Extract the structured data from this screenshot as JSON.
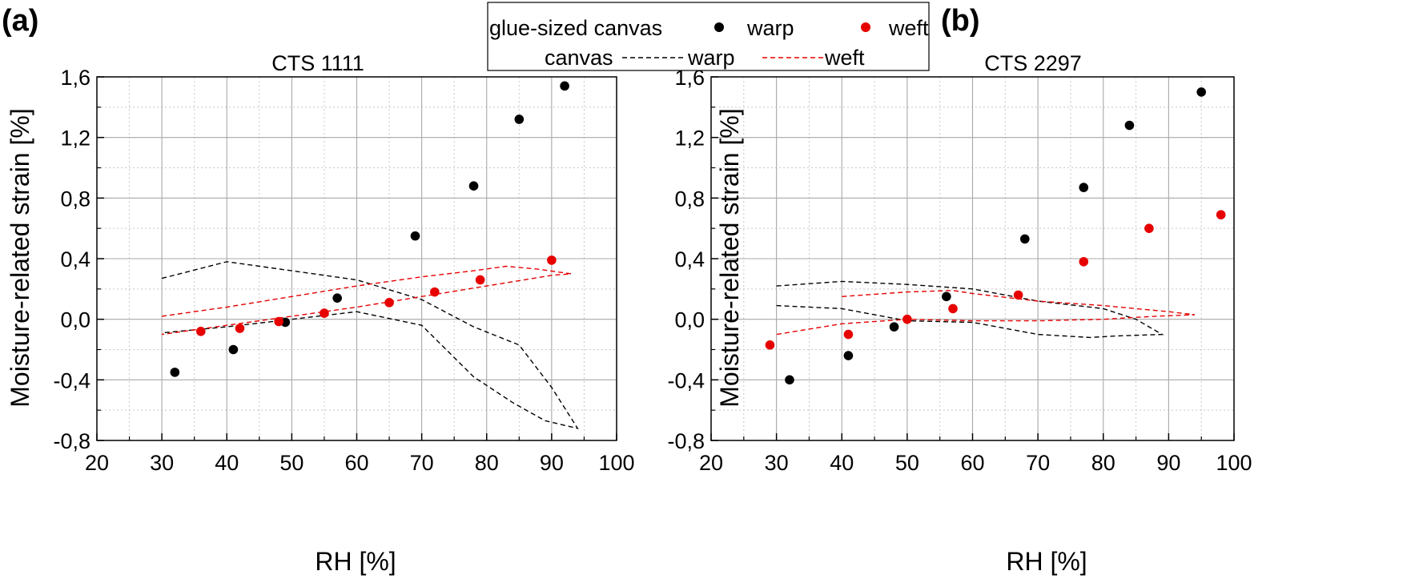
{
  "legend": {
    "glue_sized_label": "glue-sized canvas",
    "canvas_label": "canvas",
    "warp_label": "warp",
    "weft_label": "weft",
    "warp_dot_color": "#000000",
    "weft_dot_color": "#e60000",
    "warp_line_color": "#000000",
    "weft_line_color": "#e60000"
  },
  "chart_data": [
    {
      "type": "scatter",
      "panel_label": "(a)",
      "title": "CTS 1111",
      "xlabel": "RH [%]",
      "ylabel": "Moisture-related strain [%]",
      "xlim": [
        20,
        100
      ],
      "ylim": [
        -0.8,
        1.6
      ],
      "x_ticks": [
        20,
        30,
        40,
        50,
        60,
        70,
        80,
        90,
        100
      ],
      "y_ticks": [
        -0.8,
        -0.4,
        0.0,
        0.4,
        0.8,
        1.2,
        1.6
      ],
      "x_tick_labels": [
        "20",
        "30",
        "40",
        "50",
        "60",
        "70",
        "80",
        "90",
        "100"
      ],
      "y_tick_labels": [
        "-0,8",
        "-0,4",
        "0,0",
        "0,4",
        "0,8",
        "1,2",
        "1,6"
      ],
      "grid": true,
      "series": [
        {
          "name": "warp",
          "group": "glue-sized canvas",
          "kind": "points",
          "color": "#000000",
          "points": [
            [
              32,
              -0.35
            ],
            [
              41,
              -0.2
            ],
            [
              49,
              -0.02
            ],
            [
              57,
              0.14
            ],
            [
              69,
              0.55
            ],
            [
              78,
              0.88
            ],
            [
              85,
              1.32
            ],
            [
              92,
              1.54
            ]
          ]
        },
        {
          "name": "weft",
          "group": "glue-sized canvas",
          "kind": "points",
          "color": "#e60000",
          "points": [
            [
              36,
              -0.08
            ],
            [
              42,
              -0.06
            ],
            [
              48,
              -0.015
            ],
            [
              55,
              0.04
            ],
            [
              65,
              0.11
            ],
            [
              72,
              0.18
            ],
            [
              79,
              0.26
            ],
            [
              90,
              0.39
            ]
          ]
        },
        {
          "name": "warp",
          "group": "canvas",
          "kind": "dashed-line",
          "color": "#000000",
          "points": [
            [
              30,
              0.27
            ],
            [
              40,
              0.38
            ],
            [
              50,
              0.32
            ],
            [
              60,
              0.26
            ],
            [
              70,
              0.13
            ],
            [
              78,
              -0.05
            ],
            [
              85,
              -0.17
            ],
            [
              90,
              -0.45
            ],
            [
              94,
              -0.72
            ],
            [
              89,
              -0.67
            ],
            [
              84,
              -0.55
            ],
            [
              78,
              -0.38
            ],
            [
              70,
              -0.04
            ],
            [
              60,
              0.05
            ],
            [
              50,
              0.0
            ],
            [
              40,
              -0.05
            ],
            [
              30,
              -0.09
            ]
          ]
        },
        {
          "name": "weft",
          "group": "canvas",
          "kind": "dashed-line",
          "color": "#e60000",
          "points": [
            [
              30,
              0.02
            ],
            [
              40,
              0.08
            ],
            [
              50,
              0.15
            ],
            [
              60,
              0.22
            ],
            [
              70,
              0.28
            ],
            [
              78,
              0.32
            ],
            [
              83,
              0.35
            ],
            [
              88,
              0.33
            ],
            [
              93,
              0.3
            ],
            [
              90,
              0.29
            ],
            [
              80,
              0.22
            ],
            [
              70,
              0.15
            ],
            [
              60,
              0.08
            ],
            [
              50,
              0.02
            ],
            [
              40,
              -0.04
            ],
            [
              30,
              -0.1
            ]
          ]
        }
      ]
    },
    {
      "type": "scatter",
      "panel_label": "(b)",
      "title": "CTS 2297",
      "xlabel": "RH [%]",
      "ylabel": "Moisture-related strain [%]",
      "xlim": [
        20,
        100
      ],
      "ylim": [
        -0.8,
        1.6
      ],
      "x_ticks": [
        20,
        30,
        40,
        50,
        60,
        70,
        80,
        90,
        100
      ],
      "y_ticks": [
        -0.8,
        -0.4,
        0.0,
        0.4,
        0.8,
        1.2,
        1.6
      ],
      "x_tick_labels": [
        "20",
        "30",
        "40",
        "50",
        "60",
        "70",
        "80",
        "90",
        "100"
      ],
      "y_tick_labels": [
        "-0,8",
        "-0,4",
        "0,0",
        "0,4",
        "0,8",
        "1,2",
        "1,6"
      ],
      "grid": true,
      "series": [
        {
          "name": "warp",
          "group": "glue-sized canvas",
          "kind": "points",
          "color": "#000000",
          "points": [
            [
              32,
              -0.4
            ],
            [
              41,
              -0.24
            ],
            [
              48,
              -0.05
            ],
            [
              56,
              0.15
            ],
            [
              68,
              0.53
            ],
            [
              77,
              0.87
            ],
            [
              84,
              1.28
            ],
            [
              95,
              1.5
            ]
          ]
        },
        {
          "name": "weft",
          "group": "glue-sized canvas",
          "kind": "points",
          "color": "#e60000",
          "points": [
            [
              29,
              -0.17
            ],
            [
              41,
              -0.1
            ],
            [
              50,
              0.0
            ],
            [
              57,
              0.07
            ],
            [
              67,
              0.16
            ],
            [
              77,
              0.38
            ],
            [
              87,
              0.6
            ],
            [
              98,
              0.69
            ]
          ]
        },
        {
          "name": "warp",
          "group": "canvas",
          "kind": "dashed-line",
          "color": "#000000",
          "points": [
            [
              30,
              0.22
            ],
            [
              40,
              0.25
            ],
            [
              50,
              0.23
            ],
            [
              60,
              0.2
            ],
            [
              70,
              0.12
            ],
            [
              80,
              0.07
            ],
            [
              85,
              0.0
            ],
            [
              89,
              -0.1
            ],
            [
              82,
              -0.11
            ],
            [
              78,
              -0.12
            ],
            [
              70,
              -0.1
            ],
            [
              60,
              -0.02
            ],
            [
              50,
              -0.01
            ],
            [
              40,
              0.07
            ],
            [
              30,
              0.09
            ]
          ]
        },
        {
          "name": "weft",
          "group": "canvas",
          "kind": "dashed-line",
          "color": "#e60000",
          "points": [
            [
              40,
              0.15
            ],
            [
              50,
              0.18
            ],
            [
              57,
              0.19
            ],
            [
              60,
              0.17
            ],
            [
              70,
              0.12
            ],
            [
              80,
              0.09
            ],
            [
              90,
              0.05
            ],
            [
              94,
              0.03
            ],
            [
              88,
              0.02
            ],
            [
              80,
              0.0
            ],
            [
              70,
              -0.01
            ],
            [
              60,
              -0.01
            ],
            [
              50,
              0.0
            ],
            [
              40,
              -0.03
            ],
            [
              30,
              -0.1
            ]
          ]
        }
      ]
    }
  ]
}
